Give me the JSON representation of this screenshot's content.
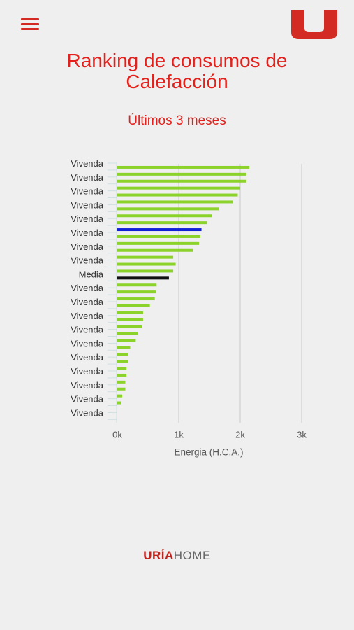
{
  "header": {
    "menu_icon": "hamburger-menu-icon",
    "logo_icon": "uria-u-logo",
    "brand_color": "#d42a24"
  },
  "page": {
    "title_line1": "Ranking de consumos de",
    "title_line2": "Calefacción",
    "subtitle": "Últimos 3 meses"
  },
  "chart_data": {
    "type": "bar",
    "orientation": "horizontal",
    "title": "",
    "xlabel": "Energia (H.C.A.)",
    "ylabel": "",
    "xlim": [
      0,
      3000
    ],
    "xticks": [
      0,
      1000,
      2000,
      3000
    ],
    "xtick_labels": [
      "0k",
      "1k",
      "2k",
      "3k"
    ],
    "grid": true,
    "colors": {
      "default": "#8bd22a",
      "highlight": "#1021d8",
      "average": "#111111"
    },
    "visible_category_labels": [
      "Vivenda",
      "Vivenda",
      "Vivenda",
      "Vivenda",
      "Vivenda",
      "Vivenda",
      "Vivenda",
      "Vivenda",
      "Media",
      "Vivenda",
      "Vivenda",
      "Vivenda",
      "Vivenda",
      "Vivenda",
      "Vivenda",
      "Vivenda",
      "Vivenda",
      "Vivenda",
      "Vivenda"
    ],
    "bars": [
      {
        "value": 2150,
        "kind": "default"
      },
      {
        "value": 2100,
        "kind": "default"
      },
      {
        "value": 2100,
        "kind": "default"
      },
      {
        "value": 2000,
        "kind": "default"
      },
      {
        "value": 1960,
        "kind": "default"
      },
      {
        "value": 1880,
        "kind": "default"
      },
      {
        "value": 1650,
        "kind": "default"
      },
      {
        "value": 1540,
        "kind": "default"
      },
      {
        "value": 1460,
        "kind": "default"
      },
      {
        "value": 1370,
        "kind": "highlight"
      },
      {
        "value": 1350,
        "kind": "default"
      },
      {
        "value": 1330,
        "kind": "default"
      },
      {
        "value": 1230,
        "kind": "default"
      },
      {
        "value": 910,
        "kind": "default"
      },
      {
        "value": 950,
        "kind": "default"
      },
      {
        "value": 910,
        "kind": "default"
      },
      {
        "value": 840,
        "kind": "average"
      },
      {
        "value": 640,
        "kind": "default"
      },
      {
        "value": 630,
        "kind": "default"
      },
      {
        "value": 610,
        "kind": "default"
      },
      {
        "value": 530,
        "kind": "default"
      },
      {
        "value": 420,
        "kind": "default"
      },
      {
        "value": 420,
        "kind": "default"
      },
      {
        "value": 400,
        "kind": "default"
      },
      {
        "value": 330,
        "kind": "default"
      },
      {
        "value": 300,
        "kind": "default"
      },
      {
        "value": 210,
        "kind": "default"
      },
      {
        "value": 180,
        "kind": "default"
      },
      {
        "value": 180,
        "kind": "default"
      },
      {
        "value": 150,
        "kind": "default"
      },
      {
        "value": 150,
        "kind": "default"
      },
      {
        "value": 130,
        "kind": "default"
      },
      {
        "value": 130,
        "kind": "default"
      },
      {
        "value": 80,
        "kind": "default"
      },
      {
        "value": 60,
        "kind": "default"
      },
      {
        "value": 0,
        "kind": "default"
      },
      {
        "value": 0,
        "kind": "default"
      }
    ]
  },
  "footer": {
    "brand_part1": "URÍA",
    "brand_part2": "HOME"
  }
}
